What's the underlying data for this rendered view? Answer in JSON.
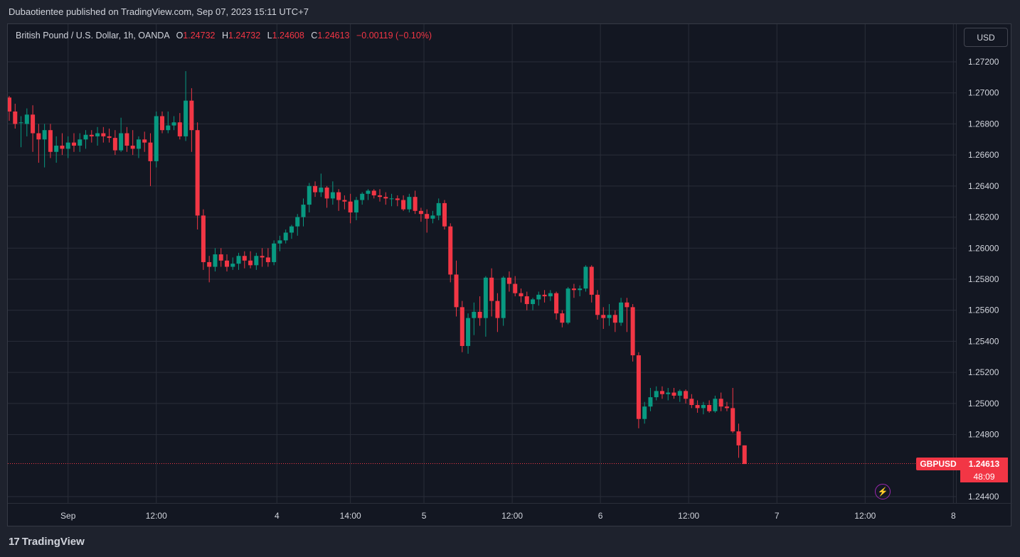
{
  "publisher": "Dubaotientee published on TradingView.com, Sep 07, 2023 15:11 UTC+7",
  "legend": {
    "instrument": "British Pound / U.S. Dollar, 1h, OANDA",
    "o_label": "O",
    "o_value": "1.24732",
    "h_label": "H",
    "h_value": "1.24732",
    "l_label": "L",
    "l_value": "1.24608",
    "c_label": "C",
    "c_value": "1.24613",
    "change": "−0.00119 (−0.10%)"
  },
  "currency_button": "USD",
  "price_tag": {
    "symbol": "GBPUSD",
    "price": "1.24613",
    "countdown": "48:09"
  },
  "brand": {
    "logo": "17",
    "name": "TradingView"
  },
  "colors": {
    "up": "#089981",
    "down": "#f23645",
    "background": "#131722",
    "grid": "#2a2e39"
  },
  "icons": {
    "alert": "lightning-icon"
  },
  "chart_data": {
    "type": "candlestick",
    "symbol": "GBPUSD",
    "timeframe": "1h",
    "ylim": [
      1.2432,
      1.2738
    ],
    "y_ticks": [
      "1.27200",
      "1.27000",
      "1.26800",
      "1.26600",
      "1.26400",
      "1.26200",
      "1.26000",
      "1.25800",
      "1.25600",
      "1.25400",
      "1.25200",
      "1.25000",
      "1.24800",
      "1.24400"
    ],
    "x_ticks": [
      {
        "label": "Sep",
        "bar": 10
      },
      {
        "label": "12:00",
        "bar": 25
      },
      {
        "label": "4",
        "bar": 45.5
      },
      {
        "label": "14:00",
        "bar": 58
      },
      {
        "label": "5",
        "bar": 70.5
      },
      {
        "label": "12:00",
        "bar": 85.5
      },
      {
        "label": "6",
        "bar": 100.5
      },
      {
        "label": "12:00",
        "bar": 115.5
      },
      {
        "label": "7",
        "bar": 130.5
      },
      {
        "label": "12:00",
        "bar": 145.5
      },
      {
        "label": "8",
        "bar": 160.5
      }
    ],
    "last_price": 1.24613,
    "ohlc": [
      [
        1.2697,
        1.2698,
        1.2682,
        1.2688
      ],
      [
        1.2688,
        1.2693,
        1.2677,
        1.268
      ],
      [
        1.2681,
        1.2685,
        1.2665,
        1.2681
      ],
      [
        1.268,
        1.269,
        1.2672,
        1.2686
      ],
      [
        1.2686,
        1.2692,
        1.2662,
        1.2674
      ],
      [
        1.2674,
        1.268,
        1.2655,
        1.267
      ],
      [
        1.267,
        1.268,
        1.2652,
        1.2676
      ],
      [
        1.2676,
        1.268,
        1.2658,
        1.2662
      ],
      [
        1.2662,
        1.2672,
        1.2655,
        1.2666
      ],
      [
        1.2666,
        1.2674,
        1.266,
        1.2664
      ],
      [
        1.2664,
        1.2672,
        1.2658,
        1.2668
      ],
      [
        1.2668,
        1.2674,
        1.2662,
        1.2666
      ],
      [
        1.2666,
        1.2674,
        1.2662,
        1.267
      ],
      [
        1.267,
        1.2676,
        1.2664,
        1.2673
      ],
      [
        1.2673,
        1.2676,
        1.2668,
        1.2672
      ],
      [
        1.2672,
        1.2678,
        1.2666,
        1.2674
      ],
      [
        1.2674,
        1.2678,
        1.2668,
        1.2672
      ],
      [
        1.2672,
        1.2677,
        1.2668,
        1.2671
      ],
      [
        1.2671,
        1.2676,
        1.266,
        1.2663
      ],
      [
        1.2663,
        1.2684,
        1.2662,
        1.2674
      ],
      [
        1.2674,
        1.2678,
        1.2662,
        1.2666
      ],
      [
        1.2666,
        1.2676,
        1.266,
        1.2664
      ],
      [
        1.2664,
        1.2672,
        1.2658,
        1.267
      ],
      [
        1.267,
        1.2675,
        1.2662,
        1.2668
      ],
      [
        1.2668,
        1.2674,
        1.264,
        1.2656
      ],
      [
        1.2656,
        1.2688,
        1.2652,
        1.2685
      ],
      [
        1.2685,
        1.2688,
        1.2674,
        1.2676
      ],
      [
        1.2676,
        1.2688,
        1.2674,
        1.2679
      ],
      [
        1.2679,
        1.2685,
        1.2676,
        1.2681
      ],
      [
        1.2681,
        1.2687,
        1.267,
        1.2672
      ],
      [
        1.2672,
        1.2714,
        1.2669,
        1.2695
      ],
      [
        1.2695,
        1.2703,
        1.2662,
        1.2676
      ],
      [
        1.2676,
        1.2681,
        1.2612,
        1.2621
      ],
      [
        1.2621,
        1.2625,
        1.2586,
        1.2591
      ],
      [
        1.2591,
        1.2595,
        1.2578,
        1.2588
      ],
      [
        1.2588,
        1.26,
        1.2585,
        1.2596
      ],
      [
        1.2596,
        1.26,
        1.2588,
        1.2592
      ],
      [
        1.2592,
        1.2596,
        1.2585,
        1.2588
      ],
      [
        1.2588,
        1.2594,
        1.2586,
        1.259
      ],
      [
        1.259,
        1.2597,
        1.2586,
        1.2595
      ],
      [
        1.2595,
        1.2598,
        1.2587,
        1.2592
      ],
      [
        1.2592,
        1.2598,
        1.2587,
        1.2589
      ],
      [
        1.2589,
        1.2597,
        1.2586,
        1.2595
      ],
      [
        1.2595,
        1.26,
        1.2588,
        1.2594
      ],
      [
        1.2594,
        1.26,
        1.2588,
        1.2591
      ],
      [
        1.2591,
        1.2605,
        1.2589,
        1.2603
      ],
      [
        1.2603,
        1.2608,
        1.2598,
        1.2605
      ],
      [
        1.2605,
        1.2612,
        1.2603,
        1.261
      ],
      [
        1.261,
        1.2615,
        1.2606,
        1.2614
      ],
      [
        1.2614,
        1.2622,
        1.2608,
        1.262
      ],
      [
        1.262,
        1.2632,
        1.2614,
        1.2628
      ],
      [
        1.2628,
        1.2642,
        1.2623,
        1.264
      ],
      [
        1.264,
        1.2643,
        1.2633,
        1.2636
      ],
      [
        1.2636,
        1.2648,
        1.2633,
        1.2639
      ],
      [
        1.2639,
        1.264,
        1.2626,
        1.2632
      ],
      [
        1.2632,
        1.2643,
        1.2628,
        1.2636
      ],
      [
        1.2636,
        1.2638,
        1.2624,
        1.2631
      ],
      [
        1.2631,
        1.2634,
        1.2625,
        1.263
      ],
      [
        1.263,
        1.2635,
        1.2616,
        1.2623
      ],
      [
        1.2623,
        1.2633,
        1.2618,
        1.2631
      ],
      [
        1.2631,
        1.2636,
        1.2628,
        1.2635
      ],
      [
        1.2635,
        1.2638,
        1.2631,
        1.2637
      ],
      [
        1.2637,
        1.2638,
        1.2632,
        1.2634
      ],
      [
        1.2634,
        1.2638,
        1.263,
        1.2633
      ],
      [
        1.2633,
        1.2636,
        1.2628,
        1.2632
      ],
      [
        1.2632,
        1.2635,
        1.2627,
        1.2632
      ],
      [
        1.2632,
        1.2634,
        1.2627,
        1.2631
      ],
      [
        1.2631,
        1.2634,
        1.2624,
        1.2625
      ],
      [
        1.2625,
        1.2635,
        1.2623,
        1.2633
      ],
      [
        1.2633,
        1.2637,
        1.2622,
        1.2624
      ],
      [
        1.2624,
        1.2626,
        1.2617,
        1.2622
      ],
      [
        1.2622,
        1.2625,
        1.261,
        1.2619
      ],
      [
        1.2619,
        1.2624,
        1.2616,
        1.2621
      ],
      [
        1.2621,
        1.2632,
        1.2618,
        1.2629
      ],
      [
        1.2629,
        1.2631,
        1.2612,
        1.2614
      ],
      [
        1.2614,
        1.2616,
        1.2578,
        1.2583
      ],
      [
        1.2583,
        1.2592,
        1.2556,
        1.2562
      ],
      [
        1.2562,
        1.2566,
        1.2533,
        1.2537
      ],
      [
        1.2537,
        1.2558,
        1.2532,
        1.2555
      ],
      [
        1.2555,
        1.2565,
        1.2544,
        1.2559
      ],
      [
        1.2559,
        1.2569,
        1.255,
        1.2555
      ],
      [
        1.2555,
        1.2582,
        1.2543,
        1.2581
      ],
      [
        1.2581,
        1.2587,
        1.2556,
        1.2566
      ],
      [
        1.2566,
        1.2571,
        1.2546,
        1.2555
      ],
      [
        1.2555,
        1.2582,
        1.255,
        1.2581
      ],
      [
        1.2581,
        1.2585,
        1.2572,
        1.2577
      ],
      [
        1.2577,
        1.2582,
        1.2569,
        1.2571
      ],
      [
        1.2571,
        1.2574,
        1.2565,
        1.2569
      ],
      [
        1.2569,
        1.2572,
        1.256,
        1.2564
      ],
      [
        1.2564,
        1.2568,
        1.256,
        1.2567
      ],
      [
        1.2567,
        1.2572,
        1.2563,
        1.257
      ],
      [
        1.257,
        1.2573,
        1.2565,
        1.2569
      ],
      [
        1.2569,
        1.2573,
        1.2566,
        1.2571
      ],
      [
        1.2571,
        1.2572,
        1.2554,
        1.2558
      ],
      [
        1.2558,
        1.256,
        1.2549,
        1.2552
      ],
      [
        1.2552,
        1.2575,
        1.2551,
        1.2574
      ],
      [
        1.2574,
        1.2577,
        1.2568,
        1.2573
      ],
      [
        1.2573,
        1.2576,
        1.2569,
        1.2574
      ],
      [
        1.2574,
        1.2589,
        1.2572,
        1.2588
      ],
      [
        1.2588,
        1.2589,
        1.2565,
        1.257
      ],
      [
        1.257,
        1.2573,
        1.2554,
        1.2557
      ],
      [
        1.2557,
        1.2562,
        1.2548,
        1.2555
      ],
      [
        1.2555,
        1.2564,
        1.255,
        1.2557
      ],
      [
        1.2557,
        1.256,
        1.2546,
        1.2552
      ],
      [
        1.2552,
        1.2568,
        1.255,
        1.2565
      ],
      [
        1.2565,
        1.2568,
        1.2546,
        1.2562
      ],
      [
        1.2562,
        1.2564,
        1.2527,
        1.2531
      ],
      [
        1.2531,
        1.2533,
        1.2484,
        1.249
      ],
      [
        1.249,
        1.2501,
        1.2487,
        1.2498
      ],
      [
        1.2498,
        1.251,
        1.2495,
        1.2504
      ],
      [
        1.2504,
        1.2511,
        1.2502,
        1.2508
      ],
      [
        1.2508,
        1.2511,
        1.2503,
        1.2506
      ],
      [
        1.2506,
        1.251,
        1.2502,
        1.2507
      ],
      [
        1.2507,
        1.251,
        1.2503,
        1.2505
      ],
      [
        1.2505,
        1.2509,
        1.2501,
        1.2508
      ],
      [
        1.2508,
        1.2509,
        1.25,
        1.2503
      ],
      [
        1.2503,
        1.2506,
        1.2497,
        1.2499
      ],
      [
        1.2499,
        1.2502,
        1.2494,
        1.2497
      ],
      [
        1.2497,
        1.2501,
        1.2493,
        1.2499
      ],
      [
        1.2499,
        1.2502,
        1.2494,
        1.2495
      ],
      [
        1.2495,
        1.2505,
        1.2494,
        1.2503
      ],
      [
        1.2503,
        1.2507,
        1.2495,
        1.2498
      ],
      [
        1.2498,
        1.2501,
        1.2495,
        1.2497
      ],
      [
        1.2497,
        1.251,
        1.2481,
        1.2482
      ],
      [
        1.2482,
        1.2487,
        1.2465,
        1.2473
      ],
      [
        1.2473,
        1.2473,
        1.2461,
        1.2461
      ]
    ]
  }
}
